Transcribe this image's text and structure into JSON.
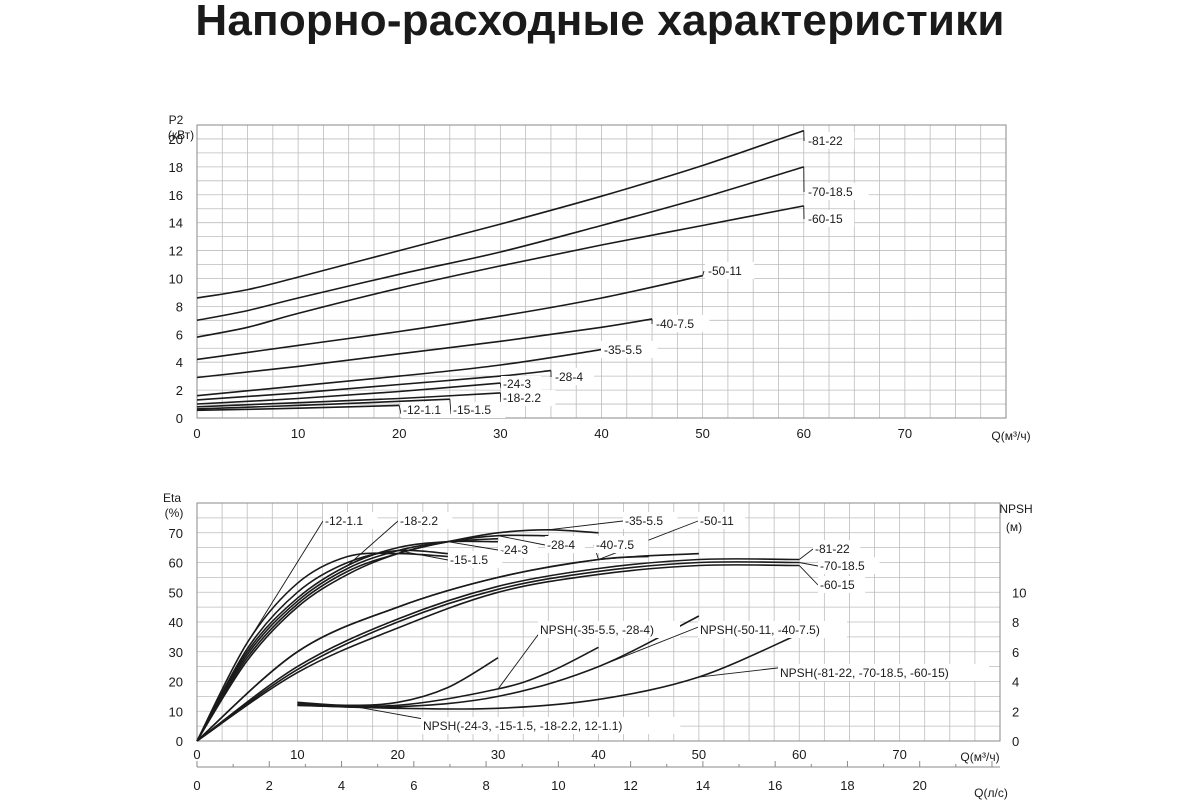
{
  "title": "Напорно-расходные характеристики",
  "chart_data": [
    {
      "type": "line",
      "ylabel_lines": [
        "P2",
        "(кВт)"
      ],
      "xlabel": "Q(м³/ч)",
      "xlim": [
        0,
        80
      ],
      "ylim": [
        0,
        21
      ],
      "x_ticks": [
        0,
        10,
        20,
        30,
        40,
        50,
        60,
        70
      ],
      "y_ticks": [
        0,
        2,
        4,
        6,
        8,
        10,
        12,
        14,
        16,
        18,
        20
      ],
      "grid": true,
      "series": [
        {
          "name": "-81-22",
          "x": [
            0,
            5,
            10,
            20,
            30,
            40,
            50,
            60
          ],
          "y": [
            8.6,
            9.2,
            10.1,
            12.0,
            13.9,
            15.9,
            18.1,
            20.6
          ]
        },
        {
          "name": "-70-18.5",
          "x": [
            0,
            5,
            10,
            20,
            30,
            40,
            50,
            60
          ],
          "y": [
            7.0,
            7.7,
            8.6,
            10.3,
            11.9,
            13.8,
            15.8,
            18.0
          ]
        },
        {
          "name": "-60-15",
          "x": [
            0,
            5,
            10,
            20,
            30,
            40,
            50,
            60
          ],
          "y": [
            5.8,
            6.5,
            7.5,
            9.3,
            10.9,
            12.4,
            13.8,
            15.2
          ]
        },
        {
          "name": "-50-11",
          "x": [
            0,
            10,
            20,
            30,
            40,
            50
          ],
          "y": [
            4.2,
            5.2,
            6.2,
            7.3,
            8.6,
            10.2
          ]
        },
        {
          "name": "-40-7.5",
          "x": [
            0,
            10,
            20,
            30,
            40,
            45
          ],
          "y": [
            2.9,
            3.7,
            4.6,
            5.5,
            6.5,
            7.1
          ]
        },
        {
          "name": "-35-5.5",
          "x": [
            0,
            10,
            20,
            30,
            40
          ],
          "y": [
            1.6,
            2.3,
            3.0,
            3.8,
            4.9
          ]
        },
        {
          "name": "-28-4",
          "x": [
            0,
            10,
            20,
            30,
            35
          ],
          "y": [
            1.3,
            1.8,
            2.4,
            3.0,
            3.4
          ]
        },
        {
          "name": "-24-3",
          "x": [
            0,
            10,
            20,
            30
          ],
          "y": [
            1.0,
            1.4,
            1.9,
            2.5
          ]
        },
        {
          "name": "-18-2.2",
          "x": [
            0,
            10,
            20,
            30
          ],
          "y": [
            0.8,
            1.1,
            1.4,
            1.8
          ]
        },
        {
          "name": "-15-1.5",
          "x": [
            0,
            10,
            20,
            25
          ],
          "y": [
            0.65,
            0.9,
            1.2,
            1.35
          ]
        },
        {
          "name": "-12-1.1",
          "x": [
            0,
            10,
            20
          ],
          "y": [
            0.55,
            0.7,
            0.9
          ]
        }
      ]
    },
    {
      "type": "line",
      "ylabel_lines": [
        "Eta",
        "(%)"
      ],
      "y2label_lines": [
        "NPSH",
        "(м)"
      ],
      "xlabel": "Q(м³/ч)",
      "x2label": "Q(л/с)",
      "xlim": [
        0,
        80
      ],
      "ylim": [
        0,
        80
      ],
      "y2lim": [
        0,
        16
      ],
      "x_ticks": [
        0,
        10,
        20,
        30,
        40,
        50,
        60,
        70
      ],
      "x2_ticks": [
        0,
        2,
        4,
        6,
        8,
        10,
        12,
        14,
        16,
        18,
        20
      ],
      "y_ticks": [
        0,
        10,
        20,
        30,
        40,
        50,
        60,
        70
      ],
      "y2_ticks": [
        0,
        2,
        4,
        6,
        8,
        10
      ],
      "grid": true,
      "series": [
        {
          "name": "-12-1.1",
          "x": [
            0,
            5,
            10,
            15,
            20,
            25
          ],
          "y": [
            0,
            33,
            53,
            62,
            63,
            62
          ]
        },
        {
          "name": "-15-1.5",
          "x": [
            0,
            5,
            10,
            15,
            20,
            25
          ],
          "y": [
            0,
            31,
            50,
            60,
            64,
            63
          ]
        },
        {
          "name": "-18-2.2",
          "x": [
            0,
            5,
            10,
            15,
            20,
            25,
            30
          ],
          "y": [
            0,
            30,
            48,
            59,
            65,
            67,
            67
          ]
        },
        {
          "name": "-24-3",
          "x": [
            0,
            5,
            10,
            15,
            20,
            25,
            30
          ],
          "y": [
            0,
            29,
            47,
            58,
            64,
            67,
            68
          ]
        },
        {
          "name": "-28-4",
          "x": [
            0,
            5,
            10,
            15,
            20,
            25,
            30,
            35
          ],
          "y": [
            0,
            28,
            46,
            57,
            63,
            67,
            69,
            69
          ]
        },
        {
          "name": "-35-5.5",
          "x": [
            0,
            5,
            10,
            15,
            20,
            25,
            30,
            35,
            40
          ],
          "y": [
            0,
            27,
            45,
            56,
            63,
            67,
            70,
            71,
            70
          ]
        },
        {
          "name": "-40-7.5",
          "x": [
            0,
            10,
            20,
            30,
            40,
            45
          ],
          "y": [
            0,
            30,
            45,
            55,
            61,
            62
          ]
        },
        {
          "name": "-50-11",
          "x": [
            0,
            10,
            20,
            30,
            40,
            50
          ],
          "y": [
            0,
            30,
            45,
            55,
            61,
            63
          ]
        },
        {
          "name": "-60-15",
          "x": [
            0,
            10,
            20,
            30,
            40,
            50,
            60
          ],
          "y": [
            0,
            23,
            38,
            50,
            56,
            59,
            59
          ]
        },
        {
          "name": "-70-18.5",
          "x": [
            0,
            10,
            20,
            30,
            40,
            50,
            60
          ],
          "y": [
            0,
            24,
            40,
            51,
            57,
            60,
            60
          ]
        },
        {
          "name": "-81-22",
          "x": [
            0,
            10,
            20,
            30,
            40,
            50,
            60
          ],
          "y": [
            0,
            25,
            41,
            52,
            58,
            61,
            61
          ]
        }
      ],
      "npsh_series": [
        {
          "name": "NPSH(-24-3, -15-1.5, -18-2.2, 12-1.1)",
          "x": [
            10,
            15,
            20,
            25,
            30
          ],
          "y": [
            2.6,
            2.4,
            2.6,
            3.6,
            5.6
          ]
        },
        {
          "name": "NPSH(-35-5.5, -28-4)",
          "x": [
            10,
            20,
            30,
            35,
            40
          ],
          "y": [
            2.5,
            2.4,
            3.5,
            4.6,
            6.3
          ]
        },
        {
          "name": "NPSH(-50-11, -40-7.5)",
          "x": [
            10,
            20,
            30,
            40,
            50
          ],
          "y": [
            2.4,
            2.3,
            3.0,
            5.0,
            8.4
          ]
        },
        {
          "name": "NPSH(-81-22, -70-18.5, -60-15)",
          "x": [
            10,
            20,
            30,
            40,
            50,
            60
          ],
          "y": [
            2.4,
            2.2,
            2.2,
            2.8,
            4.3,
            7.2
          ]
        }
      ]
    }
  ]
}
